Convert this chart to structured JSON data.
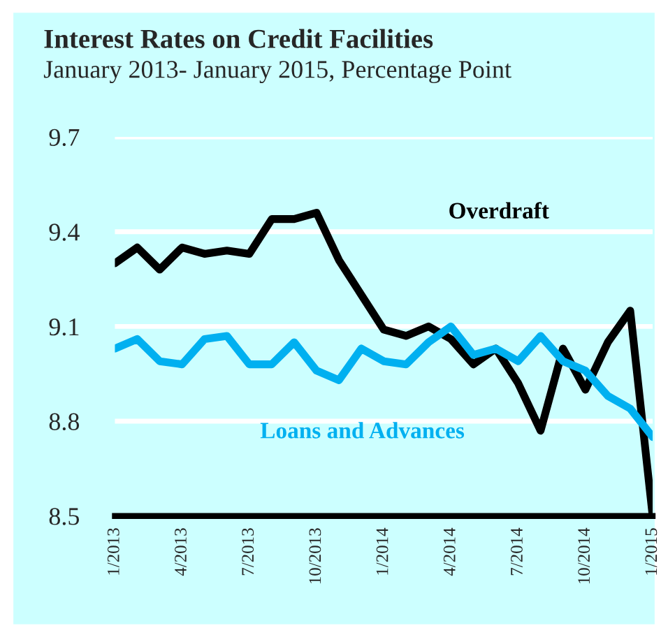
{
  "chart_data": {
    "type": "line",
    "title": "Interest Rates on Credit Facilities",
    "subtitle": "January 2013- January 2015, Percentage Point",
    "categories": [
      "1/2013",
      null,
      null,
      "4/2013",
      null,
      null,
      "7/2013",
      null,
      null,
      "10/2013",
      null,
      null,
      "1/2014",
      null,
      null,
      "4/2014",
      null,
      null,
      "7/2014",
      null,
      null,
      "10/2014",
      null,
      null,
      "1/2015"
    ],
    "series": [
      {
        "name": "Overdraft",
        "color": "#000000",
        "values": [
          9.3,
          9.35,
          9.28,
          9.35,
          9.33,
          9.34,
          9.33,
          9.44,
          9.44,
          9.46,
          9.31,
          9.2,
          9.09,
          9.07,
          9.1,
          9.06,
          8.98,
          9.03,
          8.92,
          8.77,
          9.03,
          8.9,
          9.05,
          9.15,
          8.5
        ]
      },
      {
        "name": "Loans and Advances",
        "color": "#00b0f0",
        "values": [
          9.03,
          9.06,
          8.99,
          8.98,
          9.06,
          9.07,
          8.98,
          8.98,
          9.05,
          8.96,
          8.93,
          9.03,
          8.99,
          8.98,
          9.05,
          9.1,
          9.01,
          9.03,
          8.99,
          9.07,
          8.99,
          8.96,
          8.88,
          8.84,
          8.75
        ]
      }
    ],
    "ylim": [
      8.5,
      9.7
    ],
    "yticks": [
      8.5,
      8.8,
      9.1,
      9.4,
      9.7
    ],
    "grid": "y",
    "legend": false,
    "marker": "none",
    "line_style": "solid"
  }
}
